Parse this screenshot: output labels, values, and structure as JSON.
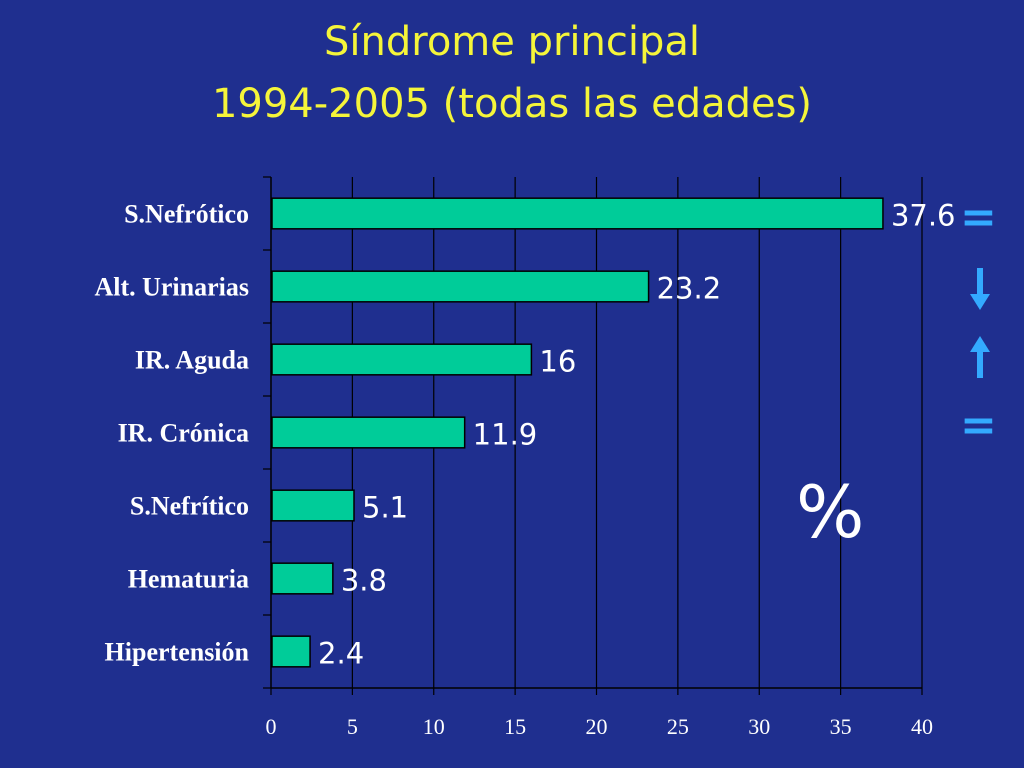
{
  "title_line1": "Síndrome principal",
  "title_line2": "1994-2005   (todas las edades)",
  "unit_symbol": "%",
  "side_marks": [
    {
      "category": "S.Nefrótico",
      "symbol": "=",
      "kind": "equal"
    },
    {
      "category": "Alt. Urinarias",
      "symbol": "",
      "kind": "down-arrow-icon"
    },
    {
      "category": "IR. Aguda",
      "symbol": "",
      "kind": "up-arrow-icon"
    },
    {
      "category": "IR. Crónica",
      "symbol": "=",
      "kind": "equal"
    }
  ],
  "colors": {
    "background": "#1f2f8f",
    "bar": "#00cc99",
    "title": "#f5f53a",
    "marks": "#33aaff"
  },
  "chart_data": {
    "type": "bar",
    "orientation": "horizontal",
    "categories": [
      "S.Nefrótico",
      "Alt. Urinarias",
      "IR. Aguda",
      "IR. Crónica",
      "S.Nefrítico",
      "Hematuria",
      "Hipertensión"
    ],
    "values": [
      37.6,
      23.2,
      16,
      11.9,
      5.1,
      3.8,
      2.4
    ],
    "data_labels": [
      "37.6",
      "23.2",
      "16",
      "11.9",
      "5.1",
      "3.8",
      "2.4"
    ],
    "xlim": [
      0,
      40
    ],
    "xticks": [
      0,
      5,
      10,
      15,
      20,
      25,
      30,
      35,
      40
    ],
    "grid": "vertical",
    "title": "Síndrome principal 1994-2005 (todas las edades)",
    "xlabel": "",
    "ylabel": ""
  }
}
